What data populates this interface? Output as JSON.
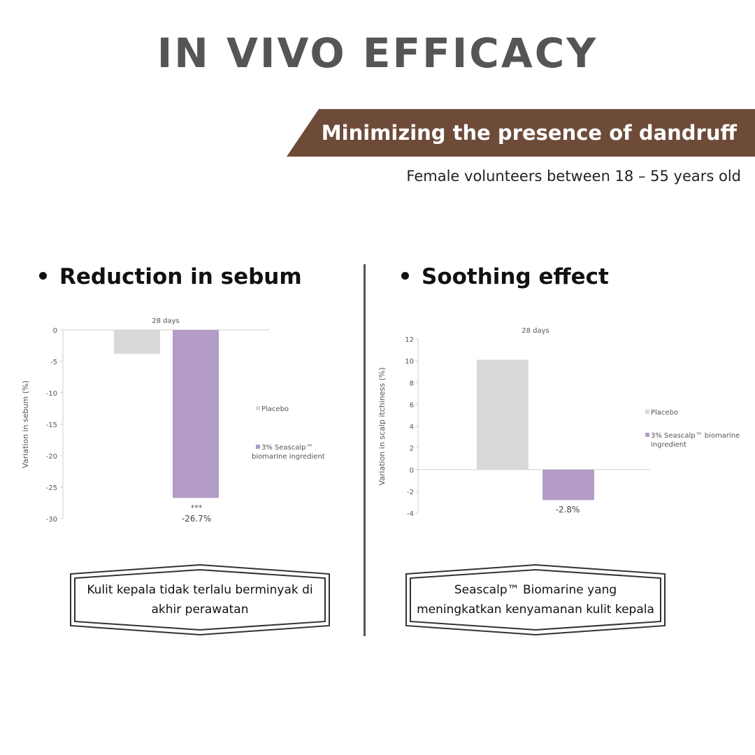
{
  "title": "IN VIVO EFFICACY",
  "banner": "Minimizing the presence of dandruff",
  "subtitle": "Female volunteers between 18 – 55 years old",
  "left": {
    "heading": "Reduction in sebum",
    "callout": "Kulit kepala tidak terlalu berminyak di akhir perawatan"
  },
  "right": {
    "heading": "Soothing effect",
    "callout": "Seascalp™ Biomarine yang meningkatkan kenyamanan kulit kepala"
  },
  "colors": {
    "banner": "#6e4b39",
    "title": "#555555",
    "placebo": "#d9d9d7",
    "seascalp": "#b39cc7"
  },
  "chart_data": [
    {
      "type": "bar",
      "title": "28 days",
      "ylabel": "Variation in sebum (%)",
      "xlabel": "",
      "ylim": [
        -30,
        0
      ],
      "yticks": [
        "0",
        "-5",
        "-10",
        "-15",
        "-20",
        "-25",
        "-30"
      ],
      "series": [
        {
          "name": "Placebo",
          "value": -3.8
        },
        {
          "name": "3% Seascalp™ biomarine ingredient",
          "value": -26.7
        }
      ],
      "legend": [
        "Placebo",
        "3% Seascalp™",
        "biomarine ingredient"
      ],
      "annotations": {
        "significance": "***",
        "value_label": "-26.7%"
      }
    },
    {
      "type": "bar",
      "title": "28 days",
      "ylabel": "Variation in scalp itchiness (%)",
      "xlabel": "",
      "ylim": [
        -4,
        12
      ],
      "yticks": [
        "12",
        "10",
        "8",
        "6",
        "4",
        "2",
        "0",
        "-2",
        "-4"
      ],
      "series": [
        {
          "name": "Placebo",
          "value": 10.1
        },
        {
          "name": "3% Seascalp™ biomarine ingredient",
          "value": -2.8
        }
      ],
      "legend": [
        "Placebo",
        "3% Seascalp™ biomarine",
        "ingredient"
      ],
      "annotations": {
        "value_label": "-2.8%"
      }
    }
  ]
}
